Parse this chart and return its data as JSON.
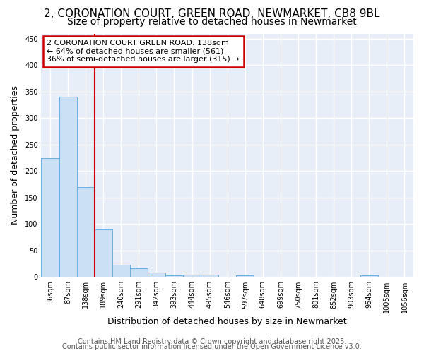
{
  "title_line1": "2, CORONATION COURT, GREEN ROAD, NEWMARKET, CB8 9BL",
  "title_line2": "Size of property relative to detached houses in Newmarket",
  "xlabel": "Distribution of detached houses by size in Newmarket",
  "ylabel": "Number of detached properties",
  "categories": [
    "36sqm",
    "87sqm",
    "138sqm",
    "189sqm",
    "240sqm",
    "291sqm",
    "342sqm",
    "393sqm",
    "444sqm",
    "495sqm",
    "546sqm",
    "597sqm",
    "648sqm",
    "699sqm",
    "750sqm",
    "801sqm",
    "852sqm",
    "903sqm",
    "954sqm",
    "1005sqm",
    "1056sqm"
  ],
  "values": [
    225,
    340,
    170,
    90,
    23,
    17,
    8,
    3,
    5,
    5,
    0,
    3,
    0,
    0,
    0,
    0,
    0,
    0,
    3,
    0,
    0
  ],
  "bar_color": "#cce0f5",
  "bar_edge_color": "#6aaee0",
  "red_line_index": 2,
  "annotation_text": "2 CORONATION COURT GREEN ROAD: 138sqm\n← 64% of detached houses are smaller (561)\n36% of semi-detached houses are larger (315) →",
  "annotation_box_color": "#ffffff",
  "annotation_box_edge_color": "#cc0000",
  "ylim": [
    0,
    460
  ],
  "yticks": [
    0,
    50,
    100,
    150,
    200,
    250,
    300,
    350,
    400,
    450
  ],
  "footer_line1": "Contains HM Land Registry data © Crown copyright and database right 2025.",
  "footer_line2": "Contains public sector information licensed under the Open Government Licence v3.0.",
  "fig_background": "#ffffff",
  "plot_background": "#e8eef8",
  "grid_color": "#ffffff",
  "title1_fontsize": 11,
  "title2_fontsize": 10,
  "axis_label_fontsize": 9,
  "tick_fontsize": 7,
  "annotation_fontsize": 8,
  "footer_fontsize": 7
}
